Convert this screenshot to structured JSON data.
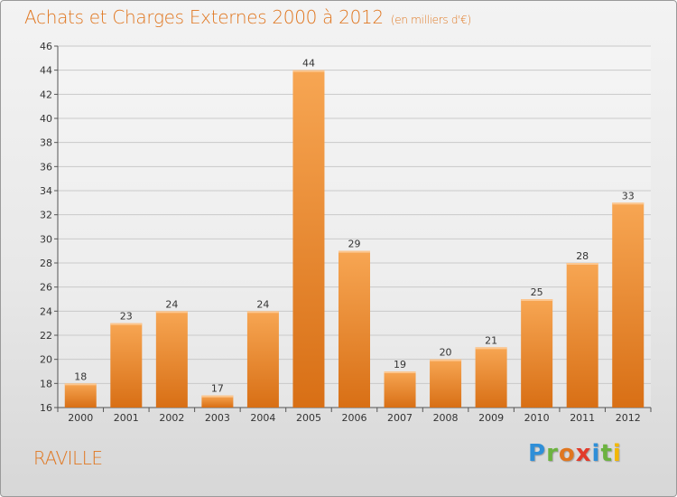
{
  "title": "Achats et Charges Externes 2000 à 2012",
  "unit": "(en milliers d'€)",
  "place": "RAVILLE",
  "logo": {
    "letters": [
      "P",
      "r",
      "o",
      "x",
      "i",
      "t",
      "i"
    ],
    "colors": [
      "#2f8fd8",
      "#6cb33f",
      "#e0761f",
      "#e23b2b",
      "#2f8fd8",
      "#6cb33f",
      "#f2b705"
    ]
  },
  "colors": {
    "bar_light": "#f7a653",
    "bar_dark": "#d86f15",
    "title": "#e0761f"
  },
  "chart_data": {
    "type": "bar",
    "categories": [
      "2000",
      "2001",
      "2002",
      "2003",
      "2004",
      "2005",
      "2006",
      "2007",
      "2008",
      "2009",
      "2010",
      "2011",
      "2012"
    ],
    "values": [
      18,
      23,
      24,
      17,
      24,
      44,
      29,
      19,
      20,
      21,
      25,
      28,
      33
    ],
    "ylim": [
      16,
      46
    ],
    "yticks": [
      16,
      18,
      20,
      22,
      24,
      26,
      28,
      30,
      32,
      34,
      36,
      38,
      40,
      42,
      44,
      46
    ],
    "grid": true,
    "legend": "none"
  }
}
